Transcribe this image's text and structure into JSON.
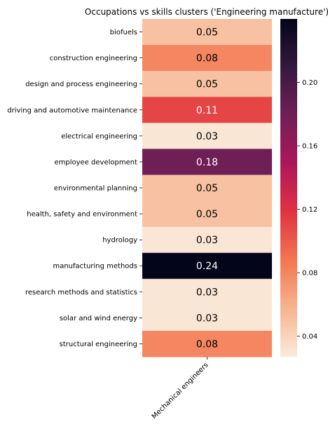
{
  "chart_data": {
    "type": "heatmap",
    "title": "Occupations vs skills clusters ('Engineering manufacture')",
    "x_categories": [
      "Mechanical engineers"
    ],
    "y_categories": [
      "biofuels",
      "construction engineering",
      "design and process engineering",
      "driving and automotive maintenance",
      "electrical engineering",
      "employee development",
      "environmental planning",
      "health, safety and environment",
      "hydrology",
      "manufacturing methods",
      "research methods and statistics",
      "solar and wind energy",
      "structural engineering"
    ],
    "values": [
      0.05,
      0.08,
      0.05,
      0.11,
      0.03,
      0.18,
      0.05,
      0.05,
      0.03,
      0.24,
      0.03,
      0.03,
      0.08
    ],
    "value_labels": [
      "0.05",
      "0.08",
      "0.05",
      "0.11",
      "0.03",
      "0.18",
      "0.05",
      "0.05",
      "0.03",
      "0.24",
      "0.03",
      "0.03",
      "0.08"
    ],
    "colormap": "rocket_r",
    "color_range": [
      0.027,
      0.24
    ],
    "colorbar": {
      "ticks": [
        0.04,
        0.08,
        0.12,
        0.16,
        0.2
      ],
      "tick_labels": [
        "0.04",
        "0.08",
        "0.12",
        "0.16",
        "0.20"
      ],
      "placement": "right"
    },
    "colormap_stops": [
      "#faebdd",
      "#f6b48f",
      "#f37651",
      "#e13342",
      "#ad1759",
      "#701f57",
      "#35193e",
      "#03051a"
    ]
  }
}
